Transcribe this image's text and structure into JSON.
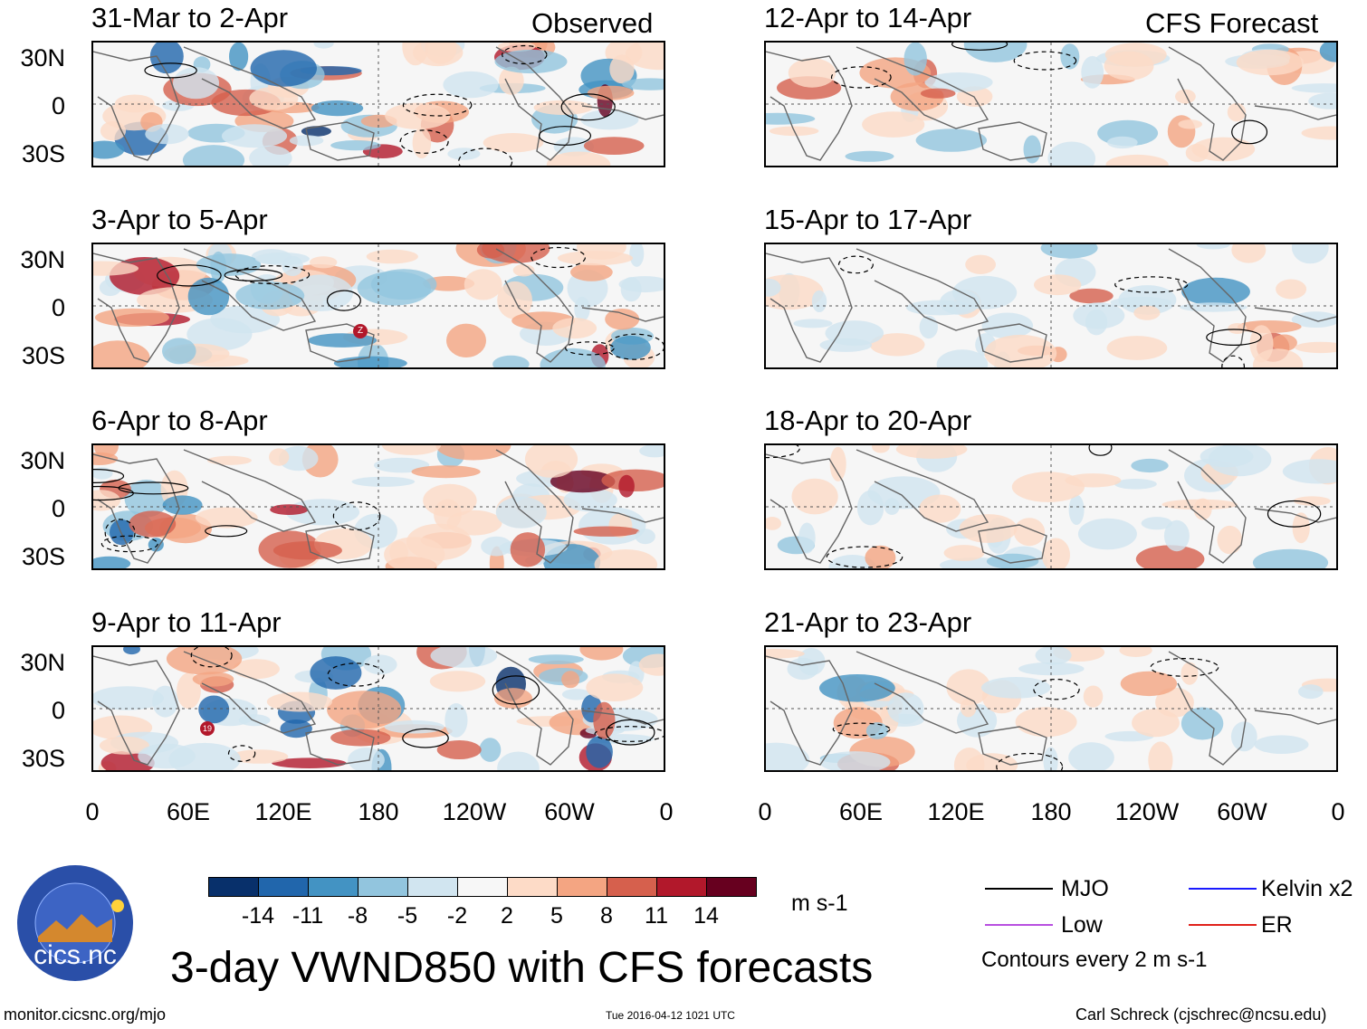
{
  "headers": {
    "observed": "Observed",
    "forecast": "CFS Forecast"
  },
  "panels": {
    "observed": [
      {
        "title": "31-Mar to 2-Apr",
        "marker": null
      },
      {
        "title": "3-Apr to 5-Apr",
        "marker": "Z"
      },
      {
        "title": "6-Apr to 8-Apr",
        "marker": null
      },
      {
        "title": "9-Apr to 11-Apr",
        "marker": "19"
      }
    ],
    "forecast": [
      {
        "title": "12-Apr to 14-Apr"
      },
      {
        "title": "15-Apr to 17-Apr"
      },
      {
        "title": "18-Apr to 20-Apr"
      },
      {
        "title": "21-Apr to 23-Apr"
      }
    ]
  },
  "lat_labels": [
    "30N",
    "0",
    "30S"
  ],
  "lon_labels": [
    "0",
    "60E",
    "120E",
    "180",
    "120W",
    "60W",
    "0"
  ],
  "colorbar": {
    "colors": [
      "#08306b",
      "#2166ac",
      "#4393c3",
      "#92c5de",
      "#d1e5f0",
      "#f7f7f7",
      "#fddbc7",
      "#f4a582",
      "#d6604d",
      "#b2182b",
      "#67001f"
    ],
    "labels": [
      "-14",
      "-11",
      "-8",
      "-5",
      "-2",
      "2",
      "5",
      "8",
      "11",
      "14"
    ],
    "units": "m s-1"
  },
  "title": "3-day VWND850 with CFS forecasts",
  "legend": {
    "items": [
      {
        "label": "MJO",
        "color": "#000000"
      },
      {
        "label": "Kelvin x2",
        "color": "#1a1aff"
      },
      {
        "label": "Low",
        "color": "#b84fe0"
      },
      {
        "label": "ER",
        "color": "#e0201a"
      }
    ],
    "contour_note": "Contours every 2 m s-1"
  },
  "logo": {
    "text": "cics.nc",
    "ring_text": "Cooperative Institute for Climate and Satellites"
  },
  "footer": {
    "left": "monitor.cicsnc.org/mjo",
    "center": "Tue 2016-04-12 1021 UTC",
    "right": "Carl Schreck (cjschrec@ncsu.edu)"
  }
}
